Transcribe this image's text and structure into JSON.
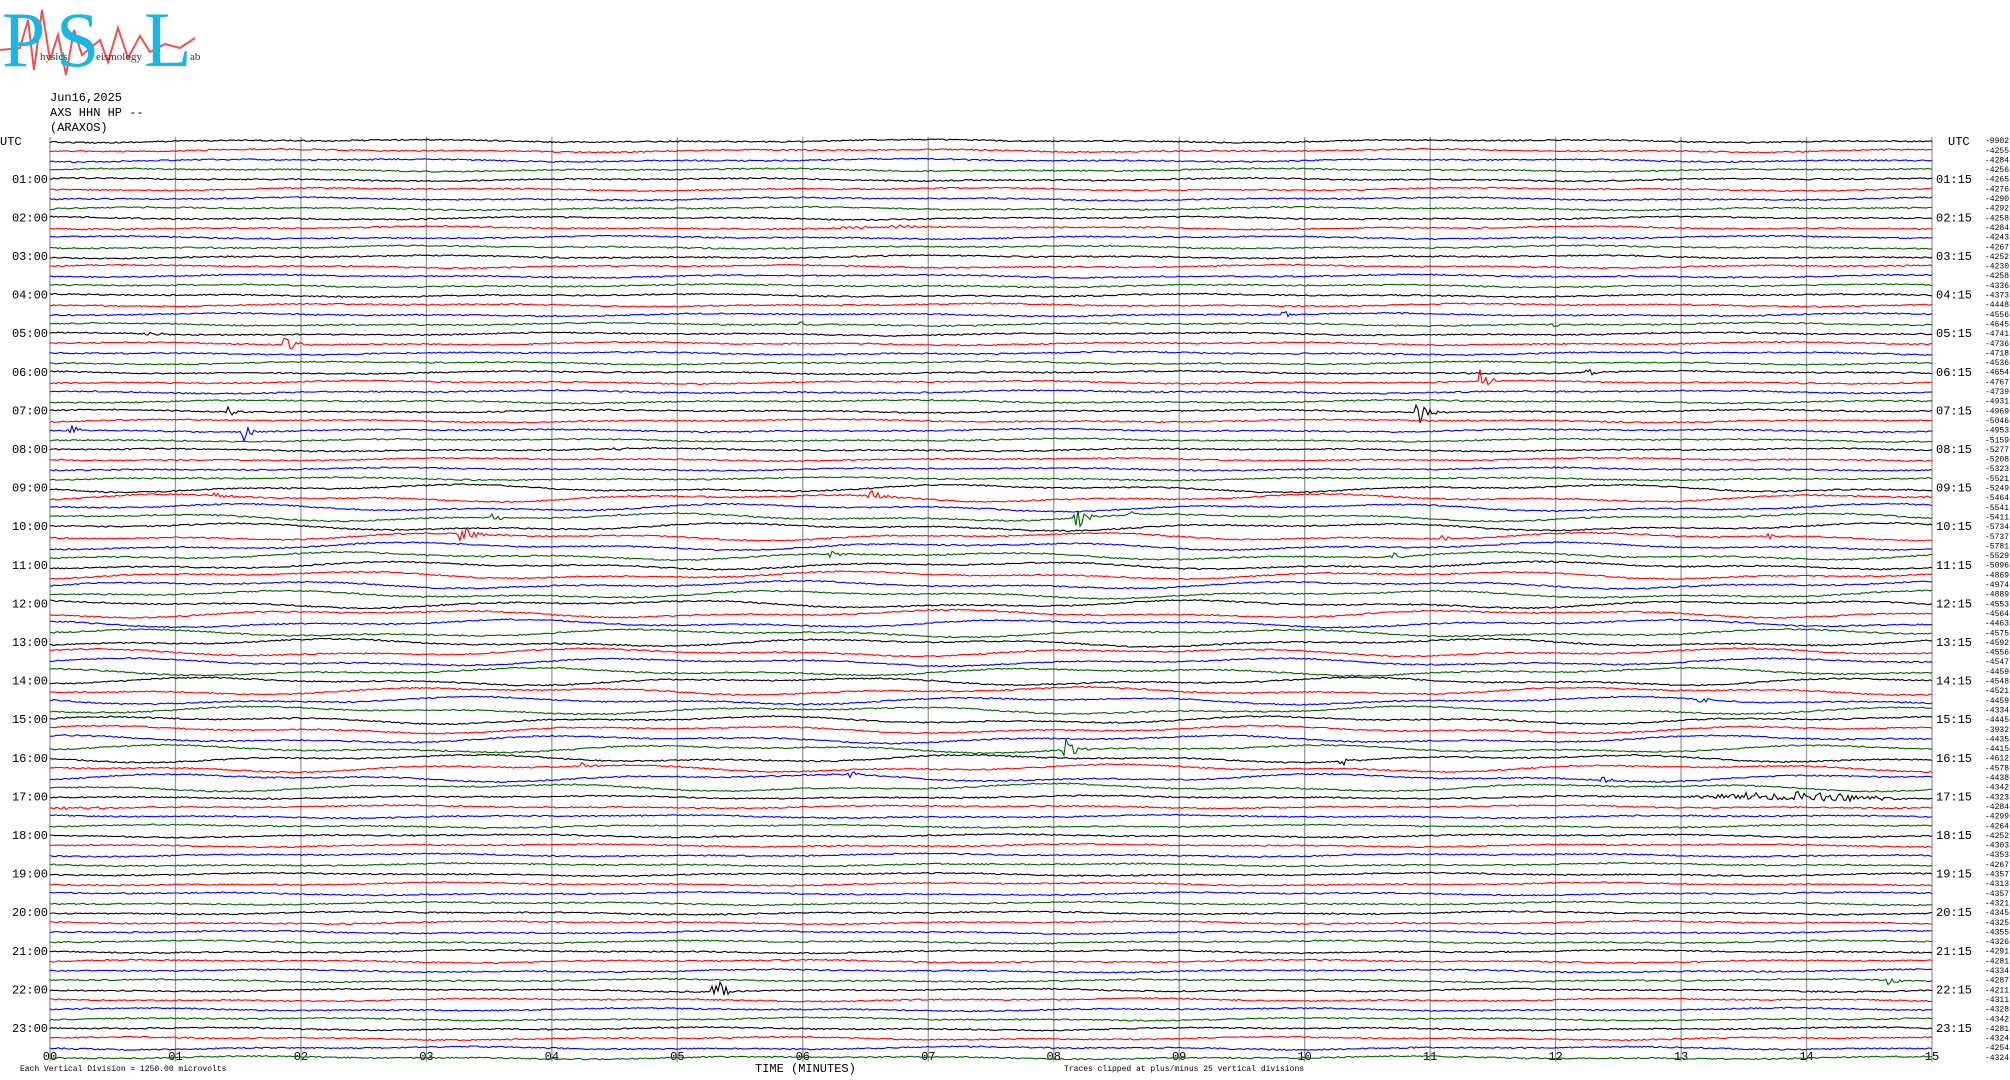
{
  "logo": {
    "letters": [
      "P",
      "S",
      "L"
    ],
    "words": [
      "hysics",
      "eismology",
      "ab"
    ]
  },
  "header": {
    "date": "Jun16,2025",
    "station": "AXS HHN HP --",
    "location": "(ARAXOS)"
  },
  "utc_left": "UTC",
  "utc_right": "UTC",
  "hours_left": [
    "01:00",
    "02:00",
    "03:00",
    "04:00",
    "05:00",
    "06:00",
    "07:00",
    "08:00",
    "09:00",
    "10:00",
    "11:00",
    "12:00",
    "13:00",
    "14:00",
    "15:00",
    "16:00",
    "17:00",
    "18:00",
    "19:00",
    "20:00",
    "21:00",
    "22:00",
    "23:00"
  ],
  "hours_right": [
    "01:15",
    "02:15",
    "03:15",
    "04:15",
    "05:15",
    "06:15",
    "07:15",
    "08:15",
    "09:15",
    "10:15",
    "11:15",
    "12:15",
    "13:15",
    "14:15",
    "15:15",
    "16:15",
    "17:15",
    "18:15",
    "19:15",
    "20:15",
    "21:15",
    "22:15",
    "23:15"
  ],
  "trace_offsets": [
    -9902,
    -4255,
    -4284,
    -4256,
    -4265,
    -4276,
    -4290,
    -4292,
    -4258,
    -4284,
    -4243,
    -4267,
    -4252,
    -4230,
    -4258,
    -4336,
    -4373,
    -4448,
    -4556,
    -4645,
    -4741,
    -4736,
    -4718,
    -4536,
    -4654,
    -4767,
    -4739,
    -4931,
    -4969,
    -5046,
    -4953,
    -5159,
    -5277,
    -5208,
    -5323,
    -5521,
    -5249,
    -5464,
    -5541,
    -5411,
    -5734,
    -5737,
    -5781,
    -5529,
    -5096,
    -4869,
    -4974,
    -4889,
    -4553,
    -4564,
    -4463,
    -4575,
    -4592,
    -4556,
    -4547,
    -4459,
    -4548,
    -4521,
    -4459,
    -4334,
    -4445,
    -3932,
    -4435,
    -4415,
    -4612,
    -4578,
    -4438,
    -4342,
    -4323,
    -4284,
    -4299,
    -4264,
    -4252,
    -4303,
    -4353,
    -4267,
    -4357,
    -4313,
    -4357,
    -4321,
    -4345,
    -4325,
    -4355,
    -4326,
    -4291,
    -4281,
    -4334,
    -4287,
    -4211,
    -4311,
    -4328,
    -4342,
    -4281,
    -4324,
    -4254,
    -4324
  ],
  "minutes": [
    "00",
    "01",
    "02",
    "03",
    "04",
    "05",
    "06",
    "07",
    "08",
    "09",
    "10",
    "11",
    "12",
    "13",
    "14",
    "15"
  ],
  "x_axis_title": "TIME (MINUTES)",
  "scale_note": "Each Vertical Division = 1250.00 microvolts",
  "clip_note": "Traces clipped at plus/minus 25 vertical divisions"
}
